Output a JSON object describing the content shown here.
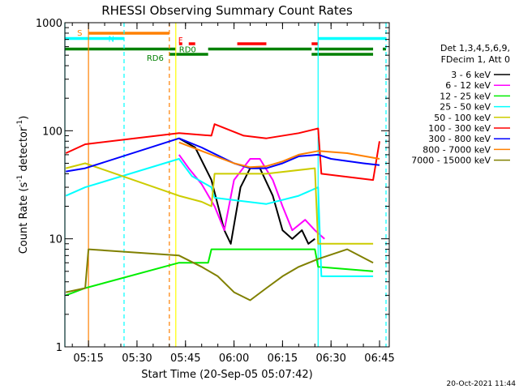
{
  "chart_data": {
    "type": "line",
    "title": "RHESSI Observing Summary Count Rates",
    "xlabel": "Start Time (20-Sep-05 05:07:42)",
    "ylabel": "Count Rate (s⁻¹ detector⁻¹)",
    "ylabel_parts": [
      "Count Rate (s",
      "-1",
      " detector",
      "-1",
      ")"
    ],
    "y_scale": "log",
    "ylim": [
      1,
      1000
    ],
    "xlim": [
      "05:07:42",
      "06:48:00"
    ],
    "x_ticks": [
      "05:15",
      "05:30",
      "05:45",
      "06:00",
      "06:15",
      "06:30",
      "06:45"
    ],
    "y_ticks": [
      "1",
      "10",
      "100",
      "1000"
    ],
    "legend_header": [
      "Det 1,3,4,5,6,9,",
      "FDecim 1, Att 0"
    ],
    "legend_position": "right",
    "timestamp": "20-Oct-2021 11:44",
    "series": [
      {
        "name": "3 - 6 keV",
        "color": "#000000",
        "points": [
          [
            "05:43",
            85
          ],
          [
            "05:48",
            70
          ],
          [
            "05:53",
            35
          ],
          [
            "05:57",
            12
          ],
          [
            "05:59",
            9
          ],
          [
            "06:02",
            30
          ],
          [
            "06:05",
            45
          ],
          [
            "06:08",
            45
          ],
          [
            "06:12",
            25
          ],
          [
            "06:15",
            12
          ],
          [
            "06:18",
            10
          ],
          [
            "06:21",
            12
          ],
          [
            "06:23",
            9
          ],
          [
            "06:25",
            10
          ]
        ]
      },
      {
        "name": "6 - 12 keV",
        "color": "#ff00ff",
        "points": [
          [
            "05:43",
            60
          ],
          [
            "05:46",
            45
          ],
          [
            "05:50",
            32
          ],
          [
            "05:54",
            20
          ],
          [
            "05:57",
            12
          ],
          [
            "06:00",
            35
          ],
          [
            "06:05",
            55
          ],
          [
            "06:08",
            55
          ],
          [
            "06:12",
            35
          ],
          [
            "06:15",
            20
          ],
          [
            "06:18",
            12
          ],
          [
            "06:22",
            15
          ],
          [
            "06:25",
            12
          ],
          [
            "06:28",
            10
          ]
        ]
      },
      {
        "name": "12 - 25 keV",
        "color": "#00ee00",
        "points": [
          [
            "05:08",
            3
          ],
          [
            "05:14",
            3.5
          ],
          [
            "05:43",
            6
          ],
          [
            "05:52",
            6
          ],
          [
            "05:53",
            8
          ],
          [
            "06:25",
            8
          ],
          [
            "06:26",
            5.5
          ],
          [
            "06:43",
            5
          ]
        ]
      },
      {
        "name": "25 - 50 keV",
        "color": "#00ffff",
        "points": [
          [
            "05:08",
            25
          ],
          [
            "05:14",
            30
          ],
          [
            "05:43",
            55
          ],
          [
            "05:47",
            38
          ],
          [
            "05:53",
            30
          ],
          [
            "05:54",
            24
          ],
          [
            "06:10",
            21
          ],
          [
            "06:20",
            25
          ],
          [
            "06:26",
            30
          ],
          [
            "06:27",
            4.5
          ],
          [
            "06:43",
            4.5
          ]
        ]
      },
      {
        "name": "50 - 100 keV",
        "color": "#cccc00",
        "points": [
          [
            "05:08",
            45
          ],
          [
            "05:14",
            50
          ],
          [
            "05:43",
            25
          ],
          [
            "05:50",
            22
          ],
          [
            "05:53",
            20
          ],
          [
            "05:54",
            40
          ],
          [
            "06:10",
            40
          ],
          [
            "06:25",
            45
          ],
          [
            "06:26",
            9
          ],
          [
            "06:43",
            9
          ]
        ]
      },
      {
        "name": "100 - 300 keV",
        "color": "#ff0000",
        "points": [
          [
            "05:08",
            62
          ],
          [
            "05:14",
            75
          ],
          [
            "05:43",
            95
          ],
          [
            "05:53",
            90
          ],
          [
            "05:54",
            115
          ],
          [
            "06:03",
            90
          ],
          [
            "06:10",
            85
          ],
          [
            "06:20",
            95
          ],
          [
            "06:26",
            105
          ],
          [
            "06:27",
            40
          ],
          [
            "06:43",
            35
          ],
          [
            "06:45",
            80
          ]
        ]
      },
      {
        "name": "300 - 800 keV",
        "color": "#0000ff",
        "points": [
          [
            "05:08",
            42
          ],
          [
            "05:14",
            45
          ],
          [
            "05:43",
            85
          ],
          [
            "05:50",
            70
          ],
          [
            "06:00",
            50
          ],
          [
            "06:05",
            45
          ],
          [
            "06:10",
            45
          ],
          [
            "06:15",
            50
          ],
          [
            "06:20",
            58
          ],
          [
            "06:26",
            60
          ],
          [
            "06:30",
            55
          ],
          [
            "06:40",
            50
          ],
          [
            "06:45",
            48
          ]
        ]
      },
      {
        "name": "800 - 7000 keV",
        "color": "#ff8000",
        "points": [
          [
            "05:43",
            78
          ],
          [
            "05:50",
            65
          ],
          [
            "06:00",
            50
          ],
          [
            "06:05",
            46
          ],
          [
            "06:10",
            47
          ],
          [
            "06:15",
            52
          ],
          [
            "06:20",
            60
          ],
          [
            "06:26",
            65
          ],
          [
            "06:35",
            62
          ],
          [
            "06:45",
            55
          ]
        ]
      },
      {
        "name": "7000 - 15000 keV",
        "color": "#808000",
        "points": [
          [
            "05:08",
            3.2
          ],
          [
            "05:14",
            3.5
          ],
          [
            "05:15",
            8
          ],
          [
            "05:43",
            7
          ],
          [
            "05:50",
            5.5
          ],
          [
            "05:55",
            4.5
          ],
          [
            "06:00",
            3.2
          ],
          [
            "06:05",
            2.7
          ],
          [
            "06:10",
            3.5
          ],
          [
            "06:15",
            4.5
          ],
          [
            "06:20",
            5.5
          ],
          [
            "06:26",
            6.5
          ],
          [
            "06:35",
            8
          ],
          [
            "06:43",
            6
          ]
        ]
      }
    ],
    "vertical_lines": [
      {
        "time": "05:07:42",
        "color": "#00ffff",
        "style": "solid"
      },
      {
        "time": "05:15",
        "color": "#ff8000",
        "style": "solid"
      },
      {
        "time": "05:26",
        "color": "#00ffff",
        "style": "dashed"
      },
      {
        "time": "05:40",
        "color": "#ff8000",
        "style": "dashed"
      },
      {
        "time": "05:42",
        "color": "#ffff00",
        "style": "solid"
      },
      {
        "time": "06:26",
        "color": "#00ffff",
        "style": "solid"
      },
      {
        "time": "06:47",
        "color": "#00ffff",
        "style": "dashed"
      }
    ],
    "flags": [
      {
        "label": "S",
        "color": "#ff8000",
        "level": 4,
        "segments": [
          [
            "05:15",
            "05:40"
          ]
        ]
      },
      {
        "label": "N",
        "color": "#00ffff",
        "level": 3,
        "segments": [
          [
            "05:07:42",
            "05:26"
          ],
          [
            "06:26",
            "06:47"
          ]
        ]
      },
      {
        "label": "F",
        "color": "#ff0000",
        "level": 2,
        "segments": [
          [
            "05:43",
            "05:44"
          ],
          [
            "05:46",
            "05:48"
          ],
          [
            "06:01",
            "06:10"
          ],
          [
            "06:24",
            "06:26"
          ]
        ]
      },
      {
        "label": "RD0",
        "color": "#008000",
        "level": 1,
        "segments": [
          [
            "05:07:42",
            "05:42"
          ],
          [
            "05:52",
            "06:24"
          ],
          [
            "06:25",
            "06:43"
          ],
          [
            "06:46",
            "06:47"
          ]
        ]
      },
      {
        "label": "RD6",
        "color": "#008000",
        "level": 0,
        "segments": [
          [
            "05:40",
            "05:52"
          ],
          [
            "06:24",
            "06:43"
          ]
        ]
      }
    ]
  }
}
